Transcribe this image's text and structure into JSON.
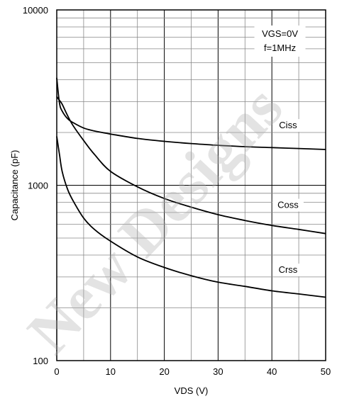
{
  "chart_data": {
    "type": "line",
    "xlabel": "VDS (V)",
    "ylabel": "Capacitance (pF)",
    "xlim": [
      0,
      50
    ],
    "ylim": [
      100,
      10000
    ],
    "yscale": "log",
    "grid": true,
    "x_ticks": [
      "0",
      "10",
      "20",
      "30",
      "40",
      "50"
    ],
    "y_ticks": [
      "100",
      "1000",
      "10000"
    ],
    "conditions": [
      "VGS=0V",
      "f=1MHz"
    ],
    "series": [
      {
        "name": "Ciss",
        "x": [
          0,
          0.5,
          1,
          2,
          3,
          5,
          7,
          10,
          15,
          20,
          25,
          30,
          35,
          40,
          45,
          50
        ],
        "y": [
          4100,
          2950,
          2650,
          2400,
          2280,
          2120,
          2040,
          1960,
          1850,
          1780,
          1730,
          1690,
          1660,
          1640,
          1620,
          1600
        ]
      },
      {
        "name": "Coss",
        "x": [
          0,
          0.5,
          1,
          2,
          3,
          5,
          7,
          10,
          15,
          20,
          25,
          30,
          35,
          40,
          45,
          50
        ],
        "y": [
          3200,
          3050,
          2900,
          2500,
          2200,
          1800,
          1500,
          1200,
          980,
          840,
          750,
          680,
          630,
          590,
          560,
          530
        ]
      },
      {
        "name": "Crss",
        "x": [
          0,
          0.5,
          1,
          2,
          3,
          5,
          7,
          10,
          15,
          20,
          25,
          30,
          35,
          40,
          45,
          50
        ],
        "y": [
          1900,
          1500,
          1200,
          950,
          820,
          650,
          560,
          480,
          390,
          340,
          305,
          280,
          265,
          250,
          240,
          230
        ]
      }
    ]
  },
  "watermark": "New Designs"
}
